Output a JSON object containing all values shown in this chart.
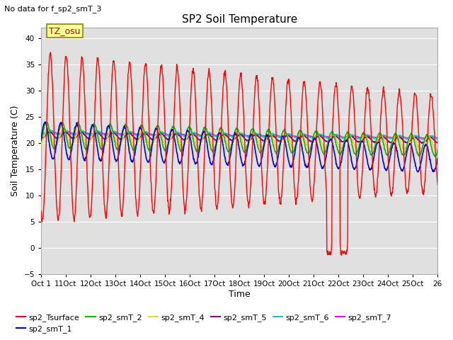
{
  "title": "SP2 Soil Temperature",
  "subtitle": "No data for f_sp2_smT_3",
  "ylabel": "Soil Temperature (C)",
  "xlabel": "Time",
  "tz_label": "TZ_osu",
  "xlim": [
    0,
    25
  ],
  "ylim": [
    -5,
    42
  ],
  "yticks": [
    -5,
    0,
    5,
    10,
    15,
    20,
    25,
    30,
    35,
    40
  ],
  "xtick_labels": [
    "Oct 1",
    "11Oct",
    "12Oct",
    "13Oct",
    "14Oct",
    "15Oct",
    "16Oct",
    "17Oct",
    "18Oct",
    "19Oct",
    "20Oct",
    "21Oct",
    "22Oct",
    "23Oct",
    "24Oct",
    "25Oct",
    "26"
  ],
  "legend": [
    {
      "label": "sp2_Tsurface",
      "color": "#FF0000"
    },
    {
      "label": "sp2_smT_1",
      "color": "#0000CC"
    },
    {
      "label": "sp2_smT_2",
      "color": "#00BB00"
    },
    {
      "label": "sp2_smT_4",
      "color": "#DDDD00"
    },
    {
      "label": "sp2_smT_5",
      "color": "#880088"
    },
    {
      "label": "sp2_smT_6",
      "color": "#00CCCC"
    },
    {
      "label": "sp2_smT_7",
      "color": "#FF00FF"
    }
  ],
  "background_color": "#FFFFFF",
  "plot_bg_color": "#E0E0E0"
}
